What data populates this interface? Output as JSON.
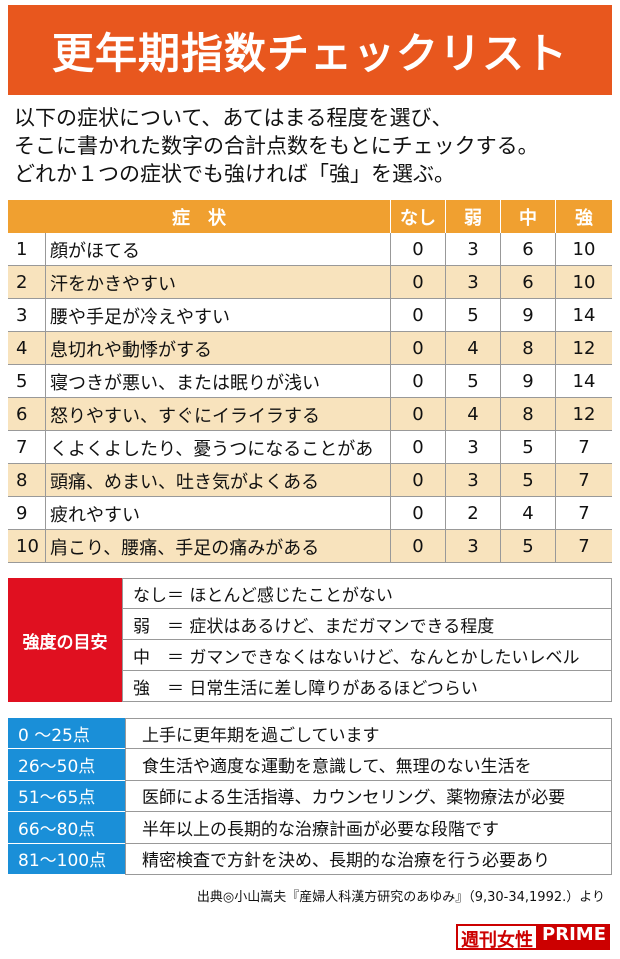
{
  "title": "更年期指数チェックリスト",
  "intro": [
    "以下の症状について、あてはまる程度を選び、",
    "そこに書かれた数字の合計点数をもとにチェックする。",
    "どれか１つの症状でも強ければ「強」を選ぶ。"
  ],
  "table": {
    "header": [
      "症　状",
      "なし",
      "弱",
      "中",
      "強"
    ],
    "rows": [
      [
        "1",
        "顔がほてる",
        0,
        3,
        6,
        10
      ],
      [
        "2",
        "汗をかきやすい",
        0,
        3,
        6,
        10
      ],
      [
        "3",
        "腰や手足が冷えやすい",
        0,
        5,
        9,
        14
      ],
      [
        "4",
        "息切れや動悸がする",
        0,
        4,
        8,
        12
      ],
      [
        "5",
        "寝つきが悪い、または眠りが浅い",
        0,
        5,
        9,
        14
      ],
      [
        "6",
        "怒りやすい、すぐにイライラする",
        0,
        4,
        8,
        12
      ],
      [
        "7",
        "くよくよしたり、憂うつになることがあ",
        0,
        3,
        5,
        7
      ],
      [
        "8",
        "頭痛、めまい、吐き気がよくある",
        0,
        3,
        5,
        7
      ],
      [
        "9",
        "疲れやすい",
        0,
        2,
        4,
        7
      ],
      [
        "10",
        "肩こり、腰痛、手足の痛みがある",
        0,
        3,
        5,
        7
      ]
    ]
  },
  "legend": {
    "label": "強度の目安",
    "items": [
      "なし＝ ほとんど感じたことがない",
      "弱　＝ 症状はあるけど、まだガマンできる程度",
      "中　＝ ガマンできなくはないけど、なんとかしたいレベル",
      "強　＝ 日常生活に差し障りがあるほどつらい"
    ]
  },
  "scores": {
    "rows": [
      [
        "0 ～25点",
        "上手に更年期を過ごしています"
      ],
      [
        "26～50点",
        "食生活や適度な運動を意識して、無理のない生活を"
      ],
      [
        "51～65点",
        "医師による生活指導、カウンセリング、薬物療法が必要"
      ],
      [
        "66～80点",
        "半年以上の長期的な治療計画が必要な段階です"
      ],
      [
        "81～100点",
        "精密検査で方針を決め、長期的な治療を行う必要あり"
      ]
    ]
  },
  "source": "出典◎小山嵩夫『産婦人科漢方研究のあゆみ』（9,30-34,1992.）より",
  "logo": [
    "週刊女性",
    "PRIME"
  ]
}
